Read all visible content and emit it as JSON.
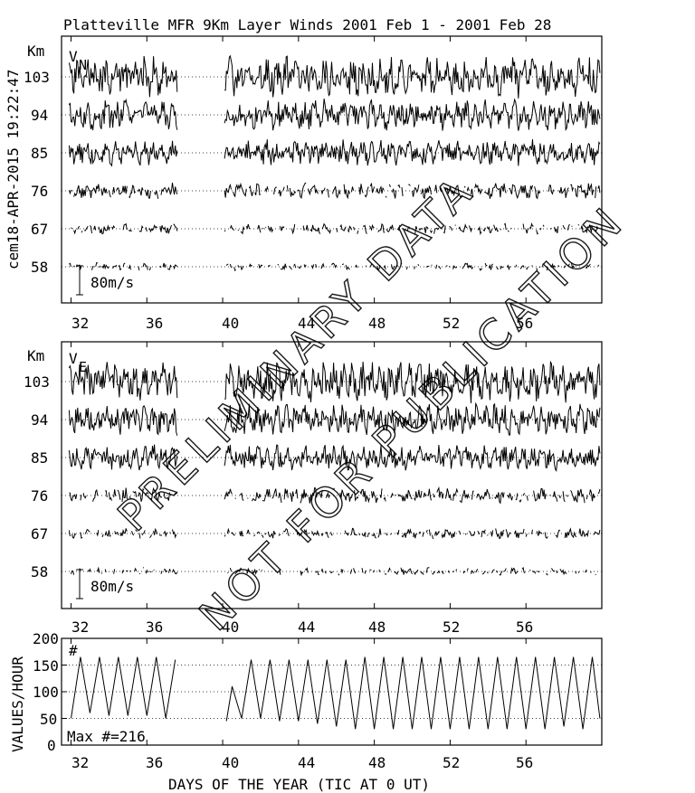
{
  "title": "Platteville MFR 9Km Layer Winds 2001 Feb  1 - 2001 Feb 28",
  "side_label": "cem18-APR-2015 19:22:47",
  "watermark": [
    "PRELIMINARY DATA",
    "NOT FOR PUBLICATION"
  ],
  "chart_data": [
    {
      "type": "line",
      "panel": "VN",
      "component_label": "V",
      "component_sub": "N",
      "unit_label": "Km",
      "height_labels": [
        "103",
        "94",
        "85",
        "76",
        "67",
        "58"
      ],
      "scale_bar_label": "80m/s",
      "x_ticks": [
        "32",
        "36",
        "40",
        "44",
        "48",
        "52",
        "56"
      ],
      "xlim": [
        31.5,
        60
      ],
      "data_gap": [
        37.6,
        40.1
      ],
      "grid": true
    },
    {
      "type": "line",
      "panel": "VE",
      "component_label": "V",
      "component_sub": "E",
      "unit_label": "Km",
      "height_labels": [
        "103",
        "94",
        "85",
        "76",
        "67",
        "58"
      ],
      "scale_bar_label": "80m/s",
      "x_ticks": [
        "32",
        "36",
        "40",
        "44",
        "48",
        "52",
        "56"
      ],
      "xlim": [
        31.5,
        60
      ],
      "data_gap": [
        37.6,
        40.1
      ],
      "grid": true
    },
    {
      "type": "line",
      "panel": "count",
      "ylabel": "VALUES/HOUR",
      "y_ticks": [
        "200",
        "150",
        "100",
        "50",
        "0"
      ],
      "ylim": [
        0,
        200
      ],
      "hash_label": "#",
      "max_label": "Max #=216",
      "x_ticks": [
        "32",
        "36",
        "40",
        "44",
        "48",
        "52",
        "56"
      ],
      "xlabel": "DAYS OF THE YEAR (TIC AT 0 UT)",
      "xlim": [
        31.5,
        60
      ],
      "data_gap": [
        37.6,
        40.1
      ],
      "grid": true,
      "series": [
        {
          "x": [
            32.0,
            32.5,
            33.0,
            33.5,
            34.0,
            34.5,
            35.0,
            35.5,
            36.0,
            36.5,
            37.0,
            37.5,
            40.2,
            40.5,
            41.0,
            41.5,
            42.0,
            42.5,
            43.0,
            43.5,
            44.0,
            44.5,
            45.0,
            45.5,
            46.0,
            46.5,
            47.0,
            47.5,
            48.0,
            48.5,
            49.0,
            49.5,
            50.0,
            50.5,
            51.0,
            51.5,
            52.0,
            52.5,
            53.0,
            53.5,
            54.0,
            54.5,
            55.0,
            55.5,
            56.0,
            56.5,
            57.0,
            57.5,
            58.0,
            58.5,
            59.0,
            59.5,
            59.9
          ],
          "y": [
            50,
            165,
            60,
            165,
            55,
            165,
            55,
            165,
            55,
            165,
            50,
            160,
            45,
            110,
            50,
            160,
            50,
            160,
            45,
            160,
            45,
            160,
            40,
            160,
            35,
            160,
            30,
            165,
            30,
            165,
            30,
            165,
            30,
            165,
            30,
            165,
            30,
            165,
            30,
            165,
            30,
            165,
            30,
            165,
            30,
            165,
            30,
            165,
            35,
            165,
            30,
            165,
            50
          ]
        }
      ]
    }
  ]
}
